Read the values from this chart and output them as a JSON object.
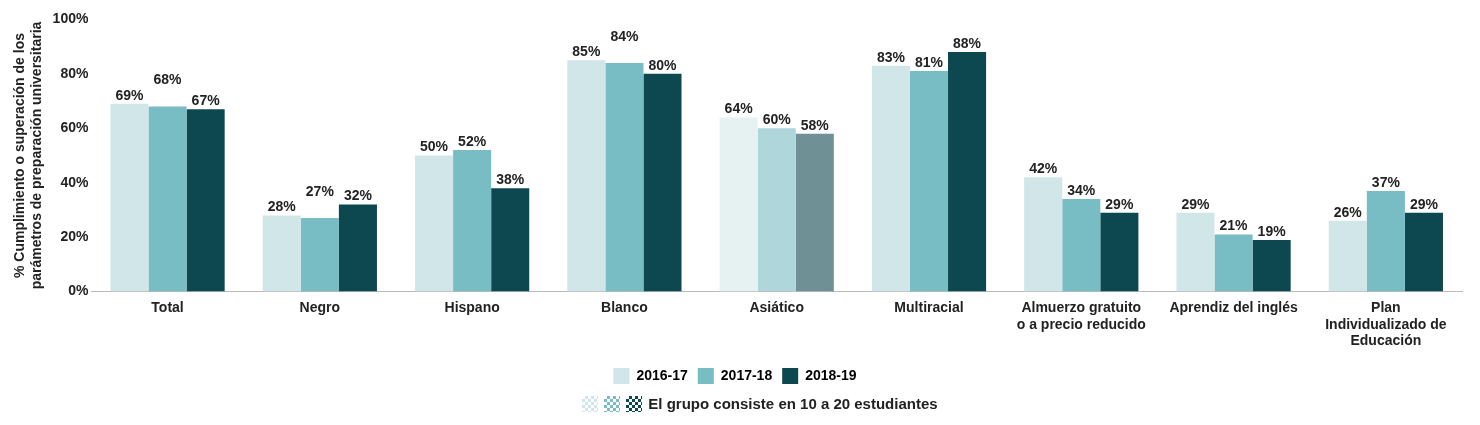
{
  "chart_data": {
    "type": "bar",
    "ylabel": "% Cumplimiento o superación de los\nparámetros de preparación universitaria",
    "categories": [
      "Total",
      "Negro",
      "Hispano",
      "Blanco",
      "Asiático",
      "Multiracial",
      "Almuerzo gratuito\no a precio reducido",
      "Aprendiz del inglés",
      "Plan\nIndividualizado de\nEducación"
    ],
    "series": [
      {
        "name": "2016-17",
        "color": "#d0e6e8",
        "colors": [
          "#d0e6e8",
          "#d0e6e8",
          "#d0e6e8",
          "#d0e6e8",
          "#e6f1f2",
          "#d0e6e8",
          "#d0e6e8",
          "#d0e6e8",
          "#d0e6e8"
        ],
        "values": [
          69,
          28,
          50,
          85,
          64,
          83,
          42,
          29,
          26
        ],
        "value_labels": [
          "69%",
          "28%",
          "50%",
          "85%",
          "64%",
          "83%",
          "42%",
          "29%",
          "26%"
        ]
      },
      {
        "name": "2017-18",
        "color": "#78bcc4",
        "colors": [
          "#78bcc4",
          "#78bcc4",
          "#78bcc4",
          "#78bcc4",
          "#aed6db",
          "#78bcc4",
          "#78bcc4",
          "#78bcc4",
          "#78bcc4"
        ],
        "values": [
          68,
          27,
          52,
          84,
          60,
          81,
          34,
          21,
          37
        ],
        "value_labels": [
          "68%",
          "27%",
          "52%",
          "84%",
          "60%",
          "81%",
          "34%",
          "21%",
          "37%"
        ]
      },
      {
        "name": "2018-19",
        "color": "#0d4750",
        "colors": [
          "#0d4750",
          "#0d4750",
          "#0d4750",
          "#0d4750",
          "#6f9196",
          "#0d4750",
          "#0d4750",
          "#0d4750",
          "#0d4750"
        ],
        "values": [
          67,
          32,
          38,
          80,
          58,
          88,
          29,
          19,
          29
        ],
        "value_labels": [
          "67%",
          "32%",
          "38%",
          "80%",
          "58%",
          "88%",
          "29%",
          "19%",
          "29%"
        ]
      }
    ],
    "ylim": [
      0,
      100
    ],
    "yticks": [
      {
        "value": 0,
        "label": "0%"
      },
      {
        "value": 20,
        "label": "20%"
      },
      {
        "value": 40,
        "label": "40%"
      },
      {
        "value": 60,
        "label": "60%"
      },
      {
        "value": 80,
        "label": "80%"
      },
      {
        "value": 100,
        "label": "100%"
      }
    ],
    "grid": false,
    "legend": "bottom",
    "annotations": [
      "El grupo consiste en 10 a 20 estudiantes"
    ]
  }
}
